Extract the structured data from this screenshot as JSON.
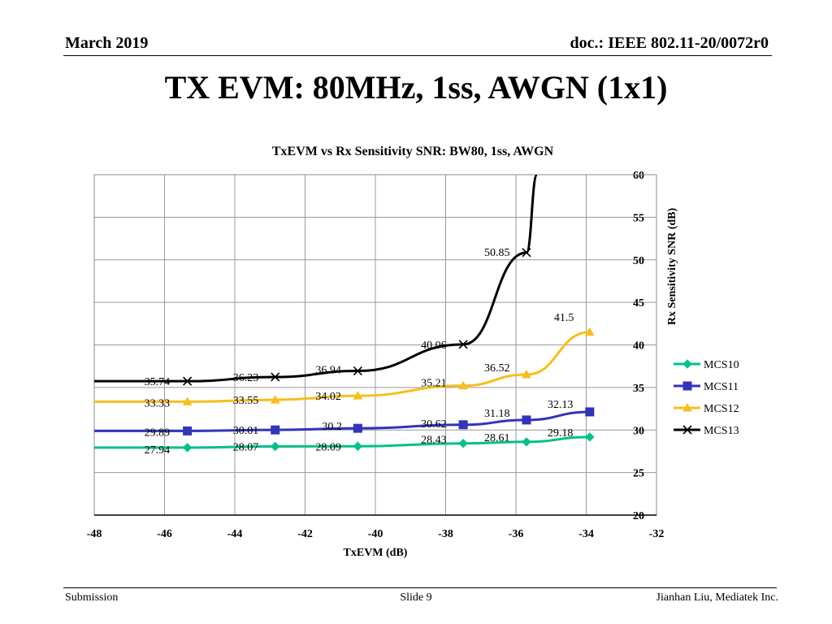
{
  "header": {
    "date": "March 2019",
    "doc": "doc.: IEEE 802.11-20/0072r0"
  },
  "slide_title": "TX EVM: 80MHz, 1ss, AWGN (1x1)",
  "footer": {
    "left": "Submission",
    "center": "Slide 9",
    "right": "Jianhan Liu, Mediatek Inc."
  },
  "chart_data": {
    "type": "line",
    "title": "TxEVM vs Rx Sensitivity SNR:  BW80, 1ss, AWGN",
    "xlabel": "TxEVM (dB)",
    "ylabel": "Rx Sensitivity SNR (dB)",
    "xlim": [
      -48,
      -32
    ],
    "ylim": [
      20,
      60
    ],
    "x_ticks": [
      "-48",
      "-46",
      "-44",
      "-42",
      "-40",
      "-38",
      "-36",
      "-34",
      "-32"
    ],
    "y_ticks": [
      "20",
      "25",
      "30",
      "35",
      "40",
      "45",
      "50",
      "55",
      "60"
    ],
    "y_axis_side": "right",
    "grid": true,
    "legend_position": "right",
    "series": [
      {
        "name": "MCS10",
        "color": "#00c08b",
        "marker": "diamond",
        "points": [
          [
            -48,
            27.94
          ],
          [
            -45.35,
            27.94
          ],
          [
            -42.85,
            28.07
          ],
          [
            -40.5,
            28.09
          ],
          [
            -37.5,
            28.43
          ],
          [
            -35.7,
            28.61
          ],
          [
            -33.9,
            29.18
          ]
        ],
        "labels": [
          "27.94",
          "28.07",
          "28.09",
          "28.43",
          "28.61",
          "29.18"
        ]
      },
      {
        "name": "MCS11",
        "color": "#3333bb",
        "marker": "square",
        "points": [
          [
            -48,
            29.89
          ],
          [
            -45.35,
            29.89
          ],
          [
            -42.85,
            30.01
          ],
          [
            -40.5,
            30.2
          ],
          [
            -37.5,
            30.62
          ],
          [
            -35.7,
            31.18
          ],
          [
            -33.9,
            32.13
          ]
        ],
        "labels": [
          "29.89",
          "30.01",
          "30.2",
          "30.62",
          "31.18",
          "32.13"
        ]
      },
      {
        "name": "MCS12",
        "color": "#f7be1c",
        "marker": "triangle",
        "points": [
          [
            -48,
            33.33
          ],
          [
            -45.35,
            33.33
          ],
          [
            -42.85,
            33.55
          ],
          [
            -40.5,
            34.02
          ],
          [
            -37.5,
            35.21
          ],
          [
            -35.7,
            36.52
          ],
          [
            -33.9,
            41.5
          ]
        ],
        "labels": [
          "33.33",
          "33.55",
          "34.02",
          "35.21",
          "36.52",
          "41.5"
        ]
      },
      {
        "name": "MCS13",
        "color": "#000000",
        "marker": "x",
        "points": [
          [
            -48,
            35.74
          ],
          [
            -45.35,
            35.74
          ],
          [
            -42.85,
            36.23
          ],
          [
            -40.5,
            36.94
          ],
          [
            -37.5,
            40.06
          ],
          [
            -35.7,
            50.85
          ],
          [
            -35.4,
            60
          ]
        ],
        "labels": [
          "35.74",
          "36.23",
          "36.94",
          "40.06",
          "50.85"
        ]
      }
    ]
  }
}
